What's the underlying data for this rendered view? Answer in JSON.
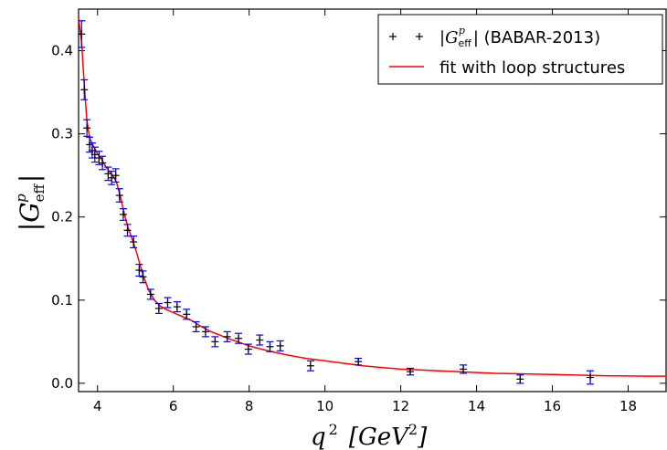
{
  "chart_data": {
    "type": "scatter",
    "xlabel_base": "q",
    "xlabel_exp": "2",
    "xlabel_unit_open": "[GeV",
    "xlabel_unit_exp": "2",
    "xlabel_unit_close": "]",
    "ylabel_base": "|G",
    "ylabel_sub": "eff",
    "ylabel_sup": "p",
    "ylabel_close": "|",
    "xlim": [
      3.5,
      19
    ],
    "ylim": [
      -0.01,
      0.45
    ],
    "xticks": [
      4,
      6,
      8,
      10,
      12,
      14,
      16,
      18
    ],
    "yticks": [
      0.0,
      0.1,
      0.2,
      0.3,
      0.4
    ],
    "xtick_labels": [
      "4",
      "6",
      "8",
      "10",
      "12",
      "14",
      "16",
      "18"
    ],
    "ytick_labels": [
      "0.0",
      "0.1",
      "0.2",
      "0.3",
      "0.4"
    ],
    "legend_position": "top-right",
    "colors": {
      "data": "#000000",
      "errorbar": "#0000ff",
      "fit": "#ff0000"
    },
    "series": [
      {
        "legend_base": "|G",
        "legend_sub": "eff",
        "legend_sup": "p",
        "legend_rest": "| (BABAR-2013)",
        "kind": "points",
        "points": [
          {
            "x": 3.58,
            "y": 0.42,
            "err": 0.016
          },
          {
            "x": 3.65,
            "y": 0.353,
            "err": 0.012
          },
          {
            "x": 3.72,
            "y": 0.307,
            "err": 0.01
          },
          {
            "x": 3.79,
            "y": 0.287,
            "err": 0.009
          },
          {
            "x": 3.86,
            "y": 0.28,
            "err": 0.009
          },
          {
            "x": 3.93,
            "y": 0.275,
            "err": 0.009
          },
          {
            "x": 4.04,
            "y": 0.271,
            "err": 0.008
          },
          {
            "x": 4.13,
            "y": 0.265,
            "err": 0.008
          },
          {
            "x": 4.28,
            "y": 0.252,
            "err": 0.008
          },
          {
            "x": 4.37,
            "y": 0.247,
            "err": 0.008
          },
          {
            "x": 4.48,
            "y": 0.25,
            "err": 0.008
          },
          {
            "x": 4.58,
            "y": 0.226,
            "err": 0.008
          },
          {
            "x": 4.68,
            "y": 0.203,
            "err": 0.007
          },
          {
            "x": 4.79,
            "y": 0.184,
            "err": 0.007
          },
          {
            "x": 4.95,
            "y": 0.17,
            "err": 0.007
          },
          {
            "x": 5.1,
            "y": 0.136,
            "err": 0.007
          },
          {
            "x": 5.2,
            "y": 0.128,
            "err": 0.007
          },
          {
            "x": 5.4,
            "y": 0.107,
            "err": 0.006
          },
          {
            "x": 5.62,
            "y": 0.09,
            "err": 0.006
          },
          {
            "x": 5.85,
            "y": 0.097,
            "err": 0.006
          },
          {
            "x": 6.1,
            "y": 0.092,
            "err": 0.006
          },
          {
            "x": 6.35,
            "y": 0.083,
            "err": 0.006
          },
          {
            "x": 6.6,
            "y": 0.068,
            "err": 0.006
          },
          {
            "x": 6.85,
            "y": 0.062,
            "err": 0.006
          },
          {
            "x": 7.1,
            "y": 0.05,
            "err": 0.006
          },
          {
            "x": 7.42,
            "y": 0.056,
            "err": 0.006
          },
          {
            "x": 7.72,
            "y": 0.054,
            "err": 0.006
          },
          {
            "x": 7.98,
            "y": 0.041,
            "err": 0.006
          },
          {
            "x": 8.28,
            "y": 0.052,
            "err": 0.006
          },
          {
            "x": 8.55,
            "y": 0.044,
            "err": 0.006
          },
          {
            "x": 8.82,
            "y": 0.045,
            "err": 0.006
          },
          {
            "x": 9.62,
            "y": 0.021,
            "err": 0.006
          },
          {
            "x": 10.88,
            "y": 0.026,
            "err": 0.004
          },
          {
            "x": 12.25,
            "y": 0.014,
            "err": 0.004
          },
          {
            "x": 13.65,
            "y": 0.017,
            "err": 0.005
          },
          {
            "x": 15.15,
            "y": 0.005,
            "err": 0.005
          },
          {
            "x": 17.0,
            "y": 0.007,
            "err": 0.008
          }
        ]
      },
      {
        "legend_text": "fit with loop structures",
        "kind": "line",
        "x": [
          3.5,
          3.58,
          3.65,
          3.72,
          3.79,
          3.86,
          3.93,
          4.0,
          4.1,
          4.2,
          4.3,
          4.4,
          4.5,
          4.6,
          4.7,
          4.8,
          4.9,
          5.0,
          5.1,
          5.2,
          5.35,
          5.5,
          5.65,
          5.8,
          6.0,
          6.25,
          6.5,
          6.75,
          7.0,
          7.5,
          8.0,
          8.5,
          9.0,
          9.5,
          10.0,
          10.5,
          11.0,
          11.5,
          12.0,
          12.5,
          13.0,
          13.5,
          14.0,
          14.5,
          15.0,
          15.5,
          16.0,
          16.5,
          17.0,
          17.5,
          18.0,
          18.5,
          19.0
        ],
        "y": [
          0.44,
          0.41,
          0.36,
          0.316,
          0.296,
          0.288,
          0.282,
          0.276,
          0.27,
          0.262,
          0.255,
          0.25,
          0.242,
          0.225,
          0.205,
          0.188,
          0.175,
          0.162,
          0.146,
          0.13,
          0.112,
          0.1,
          0.093,
          0.089,
          0.085,
          0.08,
          0.075,
          0.068,
          0.062,
          0.053,
          0.045,
          0.039,
          0.034,
          0.03,
          0.027,
          0.024,
          0.021,
          0.019,
          0.017,
          0.016,
          0.015,
          0.014,
          0.013,
          0.012,
          0.0115,
          0.011,
          0.0105,
          0.01,
          0.0095,
          0.009,
          0.0088,
          0.0086,
          0.0085
        ]
      }
    ]
  }
}
